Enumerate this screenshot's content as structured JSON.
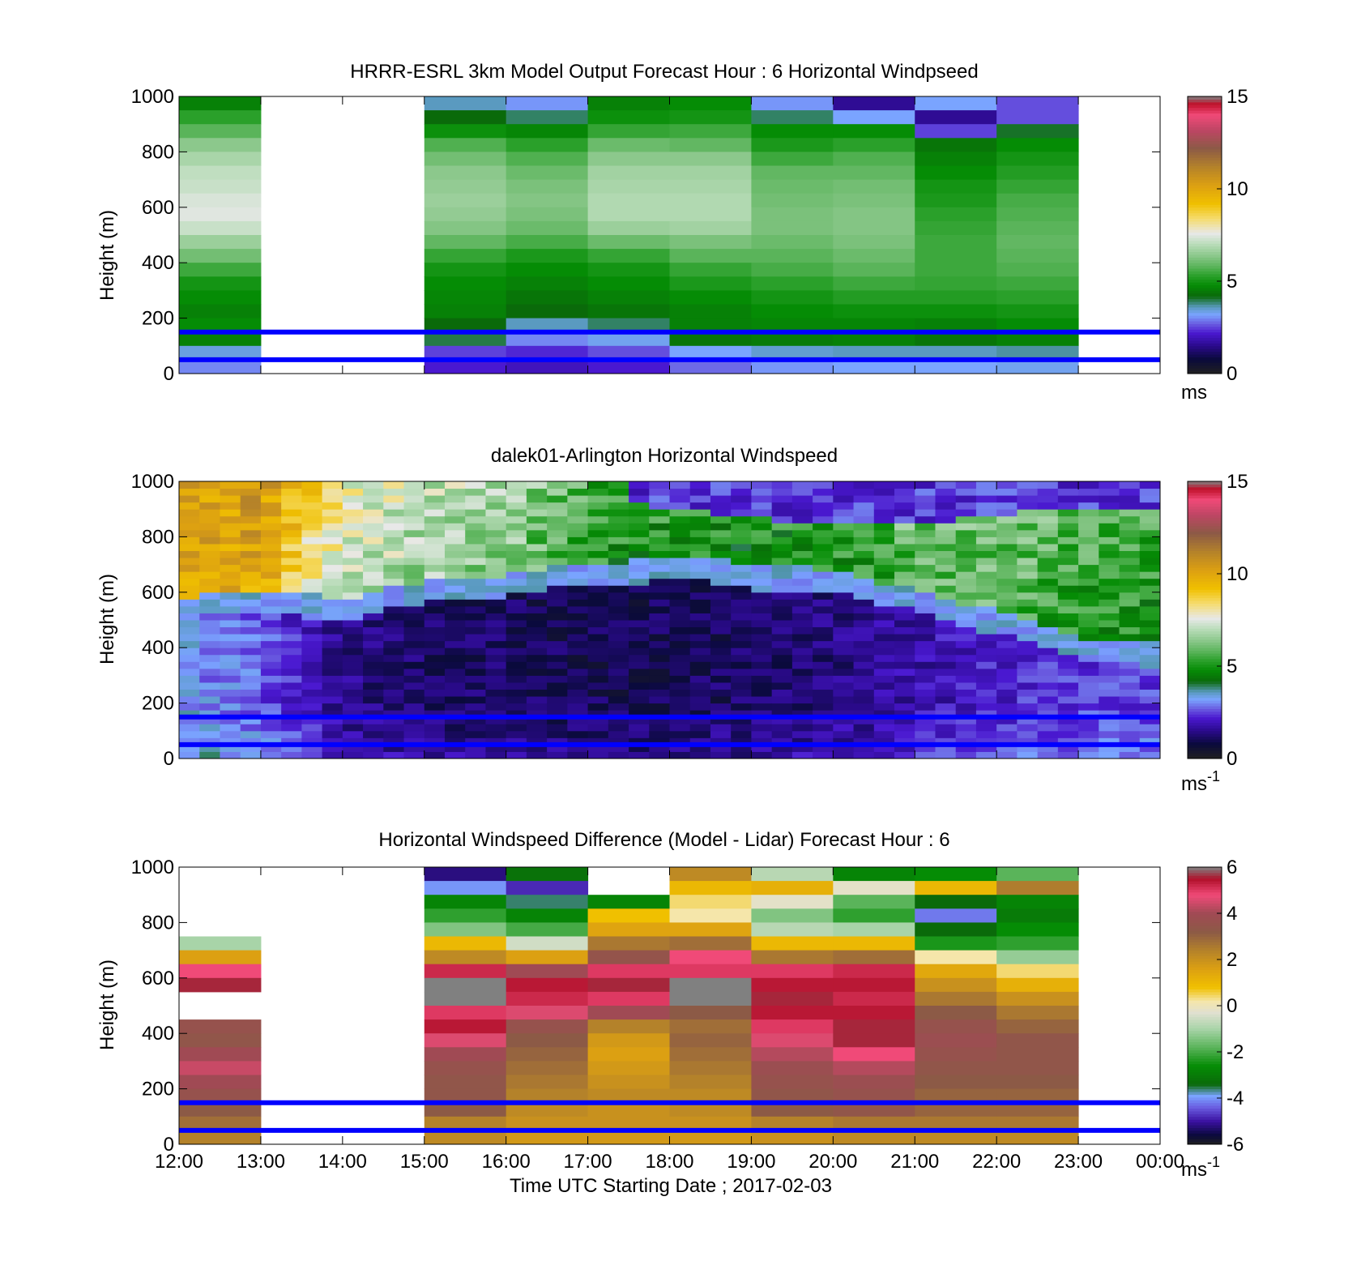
{
  "figure": {
    "xlabel": "Time UTC  Starting Date ; 2017-02-03",
    "x_tick_labels": [
      "12:00",
      "13:00",
      "14:00",
      "15:00",
      "16:00",
      "17:00",
      "18:00",
      "19:00",
      "20:00",
      "21:00",
      "22:00",
      "23:00",
      "00:00"
    ]
  },
  "colors": {
    "reference_lines": "#0000ff",
    "missing_white": "#ffffff",
    "no_data_grey": "#808080"
  },
  "chart_data": [
    {
      "type": "heatmap",
      "title": "HRRR-ESRL 3km Model Output   Forecast Hour : 6 Horizontal Windpseed",
      "ylabel": "Height (m)",
      "xlim": [
        12,
        24
      ],
      "ylim": [
        0,
        1000
      ],
      "y_ticks": [
        0,
        200,
        400,
        600,
        800,
        1000
      ],
      "reference_lines_m": [
        50,
        150
      ],
      "colorbar": {
        "min": 0,
        "max": 15,
        "ticks": [
          0,
          5,
          10,
          15
        ],
        "unit": "ms",
        "unit_sup": "",
        "palette": "speed"
      },
      "time_bins_utc_hours": [
        12,
        13,
        14,
        15,
        16,
        17,
        18,
        19,
        20,
        21,
        22,
        23
      ],
      "time_bin_width_h": 1,
      "height_top_m": 1000,
      "height_bin_m": 50,
      "values_note": "rows listed top (1000 m) to bottom; null = missing",
      "values": [
        [
          4.6,
          null,
          null,
          3.6,
          3.1,
          4.6,
          4.8,
          3.1,
          1.6,
          3.2,
          2.6,
          null
        ],
        [
          5.3,
          null,
          null,
          4.2,
          3.9,
          4.9,
          5.0,
          3.9,
          3.2,
          1.6,
          2.6,
          null
        ],
        [
          5.8,
          null,
          null,
          4.9,
          4.7,
          5.4,
          5.5,
          4.8,
          4.8,
          2.5,
          4.1,
          null
        ],
        [
          6.4,
          null,
          null,
          5.7,
          5.3,
          6.0,
          5.9,
          5.1,
          5.3,
          4.4,
          4.8,
          null
        ],
        [
          6.8,
          null,
          null,
          6.1,
          5.7,
          6.4,
          6.4,
          5.5,
          5.7,
          4.6,
          5.0,
          null
        ],
        [
          7.1,
          null,
          null,
          6.4,
          6.0,
          6.7,
          6.7,
          5.9,
          5.9,
          4.8,
          5.2,
          null
        ],
        [
          7.2,
          null,
          null,
          6.5,
          6.2,
          6.8,
          6.8,
          6.0,
          6.1,
          5.0,
          5.4,
          null
        ],
        [
          7.4,
          null,
          null,
          6.6,
          6.3,
          6.9,
          6.9,
          6.1,
          6.2,
          5.1,
          5.6,
          null
        ],
        [
          7.5,
          null,
          null,
          6.5,
          6.2,
          6.9,
          6.9,
          6.2,
          6.3,
          5.3,
          5.7,
          null
        ],
        [
          7.2,
          null,
          null,
          6.3,
          6.0,
          6.6,
          6.7,
          6.2,
          6.3,
          5.4,
          5.8,
          null
        ],
        [
          6.6,
          null,
          null,
          5.9,
          5.6,
          6.0,
          6.2,
          6.0,
          6.2,
          5.5,
          5.9,
          null
        ],
        [
          6.1,
          null,
          null,
          5.4,
          5.1,
          5.4,
          5.8,
          5.8,
          6.0,
          5.5,
          5.8,
          null
        ],
        [
          5.5,
          null,
          null,
          5.0,
          4.8,
          5.0,
          5.4,
          5.6,
          5.8,
          5.5,
          5.7,
          null
        ],
        [
          5.0,
          null,
          null,
          4.8,
          4.6,
          4.8,
          5.1,
          5.3,
          5.5,
          5.4,
          5.5,
          null
        ],
        [
          4.8,
          null,
          null,
          4.7,
          4.4,
          4.6,
          4.8,
          5.0,
          5.2,
          5.2,
          5.3,
          null
        ],
        [
          4.6,
          null,
          null,
          4.6,
          4.2,
          4.4,
          4.6,
          4.8,
          4.9,
          4.9,
          5.0,
          null
        ],
        [
          4.8,
          null,
          null,
          4.2,
          3.6,
          3.9,
          4.6,
          4.7,
          4.7,
          4.6,
          4.8,
          null
        ],
        [
          4.6,
          null,
          null,
          4.0,
          3.0,
          3.3,
          4.4,
          4.5,
          4.6,
          4.4,
          4.6,
          null
        ],
        [
          3.4,
          null,
          null,
          2.5,
          2.3,
          2.6,
          3.2,
          3.5,
          3.6,
          3.6,
          3.7,
          null
        ],
        [
          3.0,
          null,
          null,
          2.2,
          2.0,
          2.2,
          2.8,
          3.1,
          3.2,
          3.2,
          3.3,
          null
        ]
      ]
    },
    {
      "type": "heatmap",
      "title": "dalek01-Arlington  Horizontal Windspeed",
      "ylabel": "Height (m)",
      "xlim": [
        12,
        24
      ],
      "ylim": [
        0,
        1000
      ],
      "y_ticks": [
        0,
        200,
        400,
        600,
        800,
        1000
      ],
      "reference_lines_m": [
        50,
        150
      ],
      "colorbar": {
        "min": 0,
        "max": 15,
        "ticks": [
          0,
          5,
          10,
          15
        ],
        "unit": "ms",
        "unit_sup": "-1",
        "palette": "speed"
      },
      "time_resolution_min": 15,
      "height_bin_m": 25,
      "profile_note": "approximate lidar profile: low-level jet core below the transition height, green/yellow flow above",
      "transition_height_m": [
        [
          12.0,
          540
        ],
        [
          12.5,
          560
        ],
        [
          13.0,
          560
        ],
        [
          13.5,
          560
        ],
        [
          14.0,
          520
        ],
        [
          14.5,
          570
        ],
        [
          15.0,
          600
        ],
        [
          15.5,
          610
        ],
        [
          16.0,
          620
        ],
        [
          16.5,
          650
        ],
        [
          17.0,
          660
        ],
        [
          17.5,
          670
        ],
        [
          18.0,
          680
        ],
        [
          18.5,
          680
        ],
        [
          19.0,
          650
        ],
        [
          19.5,
          650
        ],
        [
          20.0,
          640
        ],
        [
          20.5,
          600
        ],
        [
          21.0,
          570
        ],
        [
          21.5,
          530
        ],
        [
          22.0,
          490
        ],
        [
          22.5,
          440
        ],
        [
          23.0,
          400
        ],
        [
          23.5,
          380
        ],
        [
          24.0,
          370
        ]
      ],
      "speed_above_transition_ms": [
        [
          12.0,
          9.5
        ],
        [
          13.0,
          9.8
        ],
        [
          14.0,
          7.0
        ],
        [
          15.0,
          6.5
        ],
        [
          16.0,
          6.2
        ],
        [
          17.0,
          5.0
        ],
        [
          18.0,
          4.8
        ],
        [
          19.0,
          4.6
        ],
        [
          20.0,
          4.8
        ],
        [
          21.0,
          5.6
        ],
        [
          22.0,
          5.6
        ],
        [
          23.0,
          5.0
        ],
        [
          24.0,
          4.7
        ]
      ],
      "speed_in_jet_core_ms": [
        [
          12.0,
          3.2
        ],
        [
          13.0,
          2.7
        ],
        [
          14.0,
          1.5
        ],
        [
          15.0,
          1.2
        ],
        [
          16.0,
          1.1
        ],
        [
          17.0,
          1.0
        ],
        [
          18.0,
          1.0
        ],
        [
          19.0,
          1.2
        ],
        [
          20.0,
          1.4
        ],
        [
          21.0,
          1.8
        ],
        [
          22.0,
          2.2
        ],
        [
          23.0,
          2.4
        ],
        [
          24.0,
          2.5
        ]
      ],
      "upper_layer_speed_ms": 1.8,
      "upper_layer_start_h": 17.5,
      "upper_layer_bottom_m": [
        [
          17.5,
          920
        ],
        [
          19.0,
          870
        ],
        [
          20.0,
          840
        ],
        [
          21.0,
          850
        ],
        [
          22.0,
          880
        ],
        [
          23.0,
          900
        ],
        [
          24.0,
          910
        ]
      ]
    },
    {
      "type": "heatmap",
      "title": "Horizontal Windspeed Difference (Model - Lidar) Forecast Hour : 6",
      "ylabel": "Height (m)",
      "xlim": [
        12,
        24
      ],
      "ylim": [
        0,
        1000
      ],
      "y_ticks": [
        0,
        200,
        400,
        600,
        800,
        1000
      ],
      "reference_lines_m": [
        50,
        150
      ],
      "colorbar": {
        "min": -6,
        "max": 6,
        "ticks": [
          -6,
          -4,
          -2,
          0,
          2,
          4,
          6
        ],
        "unit": "ms",
        "unit_sup": "-1",
        "palette": "diff"
      },
      "time_bins_utc_hours": [
        12,
        13,
        14,
        15,
        16,
        17,
        18,
        19,
        20,
        21,
        22,
        23
      ],
      "time_bin_width_h": 1,
      "height_top_m": 1000,
      "height_bin_m": 50,
      "values_note": "rows listed top (1000 m) to bottom; null = missing; \"nd\" = grey no-data",
      "values": [
        [
          null,
          null,
          null,
          -5.2,
          -3.2,
          null,
          2.2,
          -0.8,
          -2.8,
          -2.6,
          -1.8,
          null
        ],
        [
          null,
          null,
          null,
          -4.0,
          -4.8,
          null,
          1.0,
          1.2,
          -0.2,
          1.0,
          2.5,
          null
        ],
        [
          null,
          null,
          null,
          -2.8,
          -3.6,
          -2.8,
          0.4,
          -0.2,
          -1.8,
          -3.4,
          -2.8,
          null
        ],
        [
          null,
          null,
          null,
          -2.2,
          -2.8,
          0.8,
          0.2,
          -1.4,
          -2.2,
          -4.2,
          -3.0,
          null
        ],
        [
          null,
          null,
          null,
          -1.4,
          -2.0,
          1.5,
          1.5,
          -0.8,
          -1.0,
          -3.4,
          -2.6,
          null
        ],
        [
          -1.0,
          null,
          null,
          1.0,
          -0.5,
          2.6,
          2.8,
          1.0,
          1.0,
          -2.4,
          -2.2,
          null
        ],
        [
          1.6,
          null,
          null,
          2.2,
          1.6,
          3.5,
          4.8,
          2.6,
          2.8,
          0.2,
          -1.2,
          null
        ],
        [
          4.8,
          null,
          null,
          5.2,
          4.0,
          5.0,
          5.0,
          5.0,
          5.2,
          1.4,
          0.4,
          null
        ],
        [
          5.6,
          null,
          null,
          "nd",
          5.4,
          5.6,
          "nd",
          5.4,
          5.4,
          2.0,
          1.2,
          null
        ],
        [
          null,
          null,
          null,
          "nd",
          5.2,
          5.0,
          "nd",
          5.6,
          5.2,
          2.6,
          2.0,
          null
        ],
        [
          null,
          null,
          null,
          5.0,
          4.6,
          4.0,
          3.2,
          5.4,
          5.4,
          3.2,
          2.6,
          null
        ],
        [
          3.6,
          null,
          null,
          5.4,
          3.6,
          2.4,
          2.8,
          5.0,
          5.6,
          3.6,
          3.0,
          null
        ],
        [
          3.4,
          null,
          null,
          4.6,
          3.2,
          1.8,
          3.0,
          4.6,
          5.6,
          3.8,
          3.4,
          null
        ],
        [
          4.0,
          null,
          null,
          4.0,
          3.0,
          1.6,
          2.8,
          4.2,
          4.8,
          3.6,
          3.4,
          null
        ],
        [
          4.4,
          null,
          null,
          3.6,
          2.8,
          1.8,
          2.6,
          3.8,
          4.2,
          3.4,
          3.4,
          null
        ],
        [
          4.0,
          null,
          null,
          3.4,
          2.6,
          2.0,
          2.4,
          3.6,
          3.8,
          3.2,
          3.2,
          null
        ],
        [
          3.6,
          null,
          null,
          3.4,
          2.4,
          2.2,
          2.2,
          3.4,
          3.6,
          3.0,
          3.0,
          null
        ],
        [
          3.2,
          null,
          null,
          3.2,
          2.2,
          2.0,
          2.2,
          3.2,
          3.4,
          3.0,
          3.0,
          null
        ],
        [
          2.8,
          null,
          null,
          2.4,
          2.0,
          2.0,
          2.0,
          2.4,
          2.6,
          2.6,
          2.6,
          null
        ],
        [
          2.4,
          null,
          null,
          2.2,
          1.8,
          1.8,
          1.8,
          2.0,
          2.2,
          2.2,
          2.2,
          null
        ]
      ]
    }
  ]
}
